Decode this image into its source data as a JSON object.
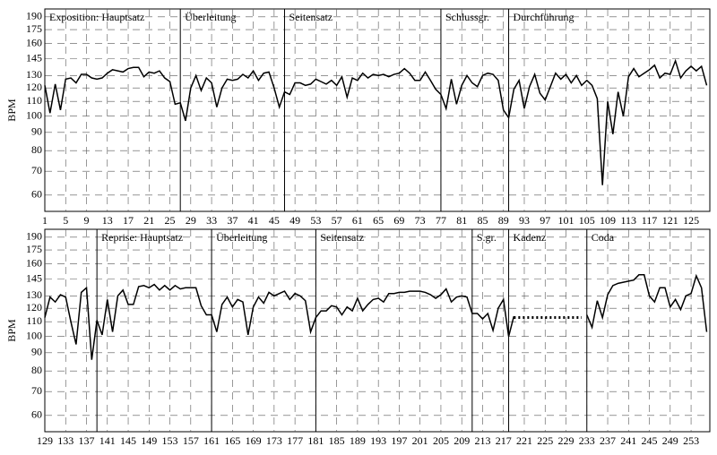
{
  "chart_data": [
    {
      "type": "line",
      "ylabel": "BPM",
      "log_y": true,
      "grid": true,
      "xlim": [
        1,
        128.6
      ],
      "ylim": [
        54,
        200
      ],
      "xticks": [
        1,
        5,
        9,
        13,
        17,
        21,
        25,
        29,
        33,
        37,
        41,
        45,
        49,
        53,
        57,
        61,
        65,
        69,
        73,
        77,
        81,
        85,
        89,
        93,
        97,
        101,
        105,
        109,
        113,
        117,
        121,
        125
      ],
      "yticks": [
        60,
        70,
        80,
        90,
        100,
        110,
        120,
        130,
        145,
        160,
        175,
        190
      ],
      "sections": [
        {
          "label": "Exposition: Hauptsatz",
          "x": 1
        },
        {
          "label": "Überleitung",
          "x": 27
        },
        {
          "label": "Seitensatz",
          "x": 47
        },
        {
          "label": "Schlussgr.",
          "x": 77
        },
        {
          "label": "Durchführung",
          "x": 90
        }
      ],
      "series": [
        {
          "color": "#000000",
          "style": "solid",
          "x": [
            1,
            2,
            3,
            4,
            5,
            6,
            7,
            8,
            9,
            10,
            11,
            12,
            13,
            14,
            15,
            16,
            17,
            18,
            19,
            20,
            21,
            22,
            23,
            24,
            25,
            26,
            27,
            28,
            29,
            30,
            31,
            32,
            33,
            34,
            35,
            36,
            37,
            38,
            39,
            40,
            41,
            42,
            43,
            44,
            45,
            46,
            47,
            48,
            49,
            50,
            51,
            52,
            53,
            54,
            55,
            56,
            57,
            58,
            59,
            60,
            61,
            62,
            63,
            64,
            65,
            66,
            67,
            68,
            69,
            70,
            71,
            72,
            73,
            74,
            75,
            76,
            77,
            78,
            79,
            80,
            81,
            82,
            83,
            84,
            85,
            86,
            87,
            88,
            89,
            90,
            91,
            92,
            93,
            94,
            95,
            96,
            97,
            98,
            99,
            100,
            101,
            102,
            103,
            104,
            105,
            106,
            107,
            108,
            109,
            110,
            111,
            112,
            113,
            114,
            115,
            116,
            117,
            118,
            119,
            120,
            121,
            122,
            123,
            124,
            125,
            126,
            127,
            128
          ],
          "values": [
            122,
            102,
            123,
            104,
            127,
            128,
            124,
            131,
            131,
            128,
            127,
            128,
            132,
            135,
            134,
            133,
            136,
            137,
            137,
            129,
            133,
            132,
            134,
            128,
            125,
            108,
            109,
            97,
            120,
            130,
            118,
            128,
            124,
            106,
            120,
            127,
            126,
            127,
            131,
            128,
            134,
            126,
            132,
            133,
            120,
            106,
            117,
            115,
            124,
            124,
            122,
            123,
            127,
            125,
            123,
            126,
            122,
            129,
            113,
            128,
            126,
            132,
            128,
            131,
            130,
            131,
            129,
            131,
            132,
            136,
            132,
            126,
            126,
            133,
            126,
            119,
            115,
            105,
            127,
            108,
            122,
            130,
            124,
            121,
            130,
            132,
            131,
            126,
            104,
            99,
            119,
            126,
            105,
            121,
            131,
            116,
            111,
            121,
            132,
            127,
            131,
            124,
            130,
            122,
            126,
            122,
            112,
            64,
            110,
            89,
            117,
            100,
            129,
            136,
            129,
            132,
            135,
            139,
            128,
            132,
            131,
            143,
            128,
            134,
            138,
            134,
            138,
            122
          ]
        }
      ]
    },
    {
      "type": "line",
      "ylabel": "BPM",
      "log_y": true,
      "grid": true,
      "xlim": [
        129,
        256.6
      ],
      "ylim": [
        54,
        200
      ],
      "xticks": [
        129,
        133,
        137,
        141,
        145,
        149,
        153,
        157,
        161,
        165,
        169,
        173,
        177,
        181,
        185,
        189,
        193,
        197,
        201,
        205,
        209,
        213,
        217,
        221,
        225,
        229,
        233,
        237,
        241,
        245,
        249,
        253
      ],
      "yticks": [
        60,
        70,
        80,
        90,
        100,
        110,
        120,
        130,
        145,
        160,
        175,
        190
      ],
      "sections": [
        {
          "label": "Reprise: Hauptsatz",
          "x": 139
        },
        {
          "label": "Überleitung",
          "x": 161
        },
        {
          "label": "Seitensatz",
          "x": 181
        },
        {
          "label": "S.gr.",
          "x": 211
        },
        {
          "label": "Kadenz",
          "x": 218
        },
        {
          "label": "Coda",
          "x": 233
        }
      ],
      "series": [
        {
          "color": "#000000",
          "style": "solid",
          "x": [
            129,
            130,
            131,
            132,
            133,
            134,
            135,
            136,
            137,
            138,
            139,
            140,
            141,
            142,
            143,
            144,
            145,
            146,
            147,
            148,
            149,
            150,
            151,
            152,
            153,
            154,
            155,
            156,
            157,
            158,
            159,
            160,
            161,
            162,
            163,
            164,
            165,
            166,
            167,
            168,
            169,
            170,
            171,
            172,
            173,
            174,
            175,
            176,
            177,
            178,
            179,
            180,
            181,
            182,
            183,
            184,
            185,
            186,
            187,
            188,
            189,
            190,
            191,
            192,
            193,
            194,
            195,
            196,
            197,
            198,
            199,
            200,
            201,
            202,
            203,
            204,
            205,
            206,
            207,
            208,
            209,
            210,
            211,
            212,
            213,
            214,
            215,
            216,
            217,
            218,
            219,
            220,
            221,
            222,
            223,
            224,
            225,
            226,
            227,
            228,
            229,
            230,
            231,
            232,
            233,
            234,
            235,
            236,
            237,
            238,
            239,
            240,
            241,
            242,
            243,
            244,
            245,
            246,
            247,
            248,
            249,
            250,
            251,
            252,
            253,
            254,
            255,
            256
          ],
          "values": [
            113,
            129,
            125,
            131,
            129,
            110,
            95,
            133,
            137,
            86,
            111,
            101,
            127,
            103,
            130,
            135,
            123,
            123,
            138,
            139,
            137,
            140,
            135,
            139,
            135,
            139,
            136,
            137,
            137,
            137,
            122,
            115,
            115,
            103,
            123,
            129,
            121,
            127,
            125,
            101,
            121,
            129,
            124,
            133,
            130,
            132,
            134,
            127,
            132,
            130,
            126,
            103,
            113,
            118,
            118,
            122,
            121,
            115,
            121,
            118,
            128,
            118,
            123,
            127,
            128,
            125,
            132,
            132,
            133,
            133,
            134,
            134,
            134,
            133,
            131,
            128,
            131,
            136,
            125,
            129,
            130,
            129,
            116,
            116,
            112,
            116,
            104,
            120,
            127,
            100,
            114,
            null,
            null,
            null,
            null,
            null,
            null,
            null,
            null,
            null,
            null,
            null,
            null,
            null,
            115,
            106,
            126,
            113,
            131,
            139,
            141,
            142,
            143,
            144,
            149,
            149,
            130,
            125,
            137,
            137,
            121,
            127,
            119,
            130,
            132,
            148,
            137,
            103
          ]
        },
        {
          "color": "#000000",
          "style": "dotted",
          "x": [
            219,
            232
          ],
          "values": [
            113,
            113
          ]
        }
      ]
    }
  ]
}
